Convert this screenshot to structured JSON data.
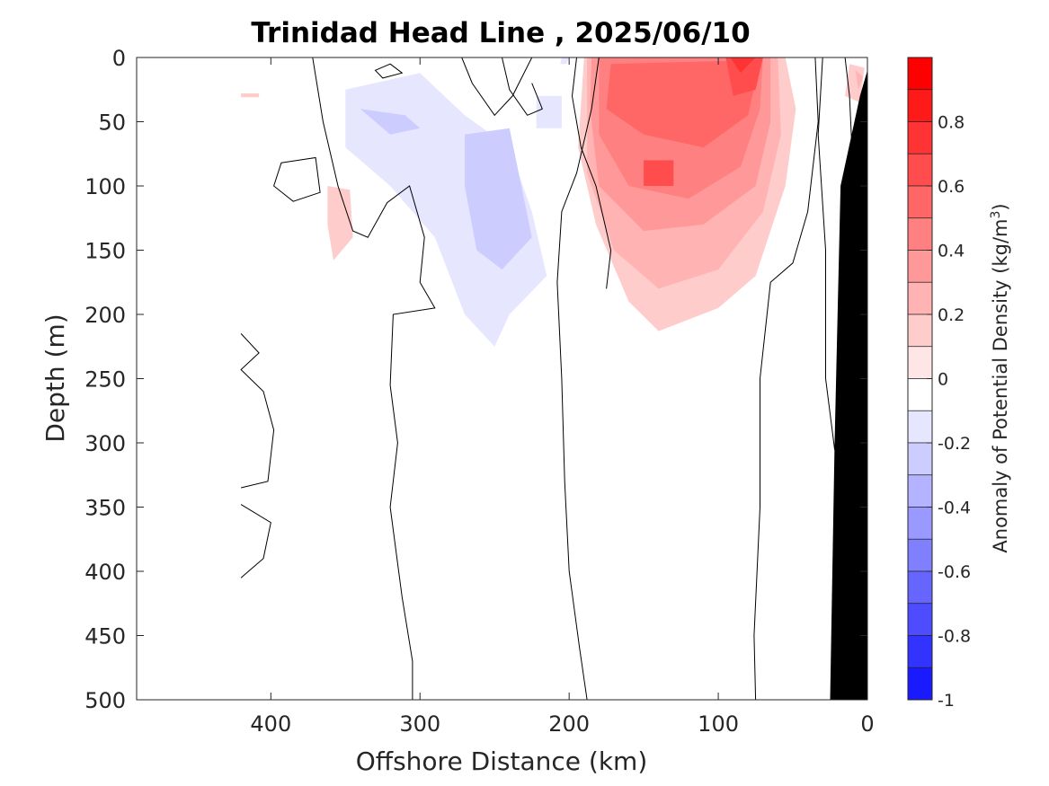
{
  "chart_data": {
    "type": "contour",
    "title": "Trinidad Head Line , 2025/06/10",
    "xlabel": "Offshore Distance (km)",
    "ylabel": "Depth (m)",
    "xlim": [
      490,
      0
    ],
    "ylim": [
      0,
      500
    ],
    "x_reversed": true,
    "y_reversed": true,
    "x_ticks": [
      400,
      300,
      200,
      100,
      0
    ],
    "y_ticks": [
      0,
      50,
      100,
      150,
      200,
      250,
      300,
      350,
      400,
      450,
      500
    ],
    "grid": false,
    "colorbar": {
      "label": "Anomaly of Potential Density (kg/m³)",
      "label_main": "Anomaly of Potential Density (kg/m",
      "label_sup": "3",
      "label_end": ")",
      "limits": [
        -1,
        1
      ],
      "tick_values": [
        0.8,
        0.6,
        0.4,
        0.2,
        0,
        -0.2,
        -0.4,
        -0.6,
        -0.8,
        -1
      ],
      "tick_labels": [
        "0.8",
        "0.6",
        "0.4",
        "0.2",
        "0",
        "-0.2",
        "-0.4",
        "-0.6",
        "-0.8",
        "-1"
      ],
      "levels": [
        1.0,
        0.9,
        0.8,
        0.7,
        0.6,
        0.5,
        0.4,
        0.3,
        0.2,
        0.1,
        0.0,
        -0.1,
        -0.2,
        -0.3,
        -0.4,
        -0.5,
        -0.6,
        -0.7,
        -0.8,
        -0.9,
        -1.0
      ],
      "colors": [
        "#ff0000",
        "#ff1a1a",
        "#ff3333",
        "#ff4d4d",
        "#ff6666",
        "#ff8080",
        "#ff9999",
        "#ffb3b3",
        "#ffcccc",
        "#ffe6e6",
        "#ffffff",
        "#e6e6ff",
        "#ccccff",
        "#b3b3ff",
        "#9999ff",
        "#8080ff",
        "#6666ff",
        "#4d4dff",
        "#3333ff",
        "#1a1aff"
      ]
    },
    "filled_regions": [
      {
        "value": 0.15,
        "points": [
          [
            190,
            0
          ],
          [
            55,
            0
          ],
          [
            48,
            40
          ],
          [
            55,
            100
          ],
          [
            75,
            170
          ],
          [
            100,
            195
          ],
          [
            140,
            213
          ],
          [
            160,
            190
          ],
          [
            182,
            130
          ],
          [
            194,
            70
          ]
        ]
      },
      {
        "value": 0.25,
        "points": [
          [
            188,
            0
          ],
          [
            60,
            0
          ],
          [
            58,
            60
          ],
          [
            70,
            120
          ],
          [
            100,
            165
          ],
          [
            140,
            180
          ],
          [
            170,
            150
          ],
          [
            188,
            90
          ]
        ]
      },
      {
        "value": 0.35,
        "points": [
          [
            185,
            0
          ],
          [
            65,
            0
          ],
          [
            65,
            50
          ],
          [
            75,
            100
          ],
          [
            110,
            130
          ],
          [
            150,
            135
          ],
          [
            180,
            100
          ],
          [
            186,
            40
          ]
        ]
      },
      {
        "value": 0.45,
        "points": [
          [
            180,
            0
          ],
          [
            70,
            0
          ],
          [
            72,
            40
          ],
          [
            85,
            85
          ],
          [
            120,
            110
          ],
          [
            160,
            100
          ],
          [
            180,
            60
          ]
        ]
      },
      {
        "value": 0.55,
        "points": [
          [
            172,
            5
          ],
          [
            72,
            2
          ],
          [
            80,
            45
          ],
          [
            110,
            70
          ],
          [
            150,
            60
          ],
          [
            175,
            40
          ]
        ]
      },
      {
        "value": 0.65,
        "points": [
          [
            70,
            0
          ],
          [
            95,
            0
          ],
          [
            90,
            30
          ],
          [
            75,
            25
          ]
        ]
      },
      {
        "value": 0.65,
        "points": [
          [
            130,
            80
          ],
          [
            150,
            80
          ],
          [
            150,
            100
          ],
          [
            130,
            100
          ]
        ]
      },
      {
        "value": 0.75,
        "points": [
          [
            75,
            0
          ],
          [
            92,
            0
          ],
          [
            85,
            12
          ]
        ]
      },
      {
        "value": 0.15,
        "points": [
          [
            12,
            5
          ],
          [
            2,
            8
          ],
          [
            5,
            35
          ],
          [
            15,
            30
          ]
        ]
      },
      {
        "value": 0.25,
        "points": [
          [
            8,
            10
          ],
          [
            3,
            15
          ],
          [
            6,
            25
          ]
        ]
      },
      {
        "value": 0.15,
        "points": [
          [
            362,
            100
          ],
          [
            347,
            103
          ],
          [
            345,
            140
          ],
          [
            358,
            158
          ],
          [
            362,
            130
          ]
        ]
      },
      {
        "value": 0.15,
        "points": [
          [
            420,
            28
          ],
          [
            408,
            28
          ],
          [
            408,
            31
          ],
          [
            420,
            31
          ]
        ]
      },
      {
        "value": -0.15,
        "points": [
          [
            350,
            25
          ],
          [
            300,
            12
          ],
          [
            270,
            45
          ],
          [
            240,
            70
          ],
          [
            225,
            120
          ],
          [
            215,
            170
          ],
          [
            240,
            200
          ],
          [
            250,
            225
          ],
          [
            270,
            200
          ],
          [
            290,
            140
          ],
          [
            320,
            100
          ],
          [
            350,
            70
          ]
        ]
      },
      {
        "value": -0.25,
        "points": [
          [
            340,
            40
          ],
          [
            310,
            45
          ],
          [
            300,
            55
          ],
          [
            320,
            60
          ]
        ]
      },
      {
        "value": -0.25,
        "points": [
          [
            270,
            60
          ],
          [
            240,
            55
          ],
          [
            225,
            140
          ],
          [
            245,
            165
          ],
          [
            262,
            150
          ],
          [
            270,
            100
          ]
        ]
      },
      {
        "value": -0.15,
        "points": [
          [
            205,
            30
          ],
          [
            205,
            55
          ],
          [
            222,
            55
          ],
          [
            222,
            30
          ]
        ]
      },
      {
        "value": -0.15,
        "points": [
          [
            200,
            0
          ],
          [
            202,
            5
          ],
          [
            206,
            5
          ],
          [
            205,
            0
          ]
        ]
      }
    ],
    "zero_contours": [
      {
        "closed": false,
        "points": [
          [
            372,
            0
          ],
          [
            365,
            50
          ],
          [
            355,
            100
          ],
          [
            345,
            135
          ],
          [
            335,
            140
          ],
          [
            322,
            113
          ],
          [
            307,
            100
          ],
          [
            297,
            140
          ],
          [
            300,
            175
          ],
          [
            290,
            195
          ],
          [
            318,
            200
          ],
          [
            320,
            255
          ],
          [
            315,
            300
          ],
          [
            320,
            350
          ],
          [
            312,
            420
          ],
          [
            305,
            470
          ],
          [
            305,
            500
          ]
        ]
      },
      {
        "closed": false,
        "points": [
          [
            180,
            0
          ],
          [
            185,
            40
          ],
          [
            195,
            90
          ],
          [
            205,
            120
          ],
          [
            208,
            175
          ],
          [
            205,
            250
          ],
          [
            203,
            330
          ],
          [
            200,
            400
          ],
          [
            193,
            460
          ],
          [
            188,
            500
          ]
        ]
      },
      {
        "closed": false,
        "points": [
          [
            35,
            0
          ],
          [
            33,
            50
          ],
          [
            40,
            120
          ],
          [
            50,
            160
          ],
          [
            65,
            175
          ],
          [
            72,
            250
          ],
          [
            72,
            350
          ],
          [
            76,
            450
          ],
          [
            75,
            500
          ]
        ]
      },
      {
        "closed": false,
        "points": [
          [
            195,
            0
          ],
          [
            198,
            30
          ],
          [
            192,
            70
          ],
          [
            182,
            100
          ],
          [
            172,
            150
          ],
          [
            175,
            180
          ]
        ]
      },
      {
        "closed": false,
        "points": [
          [
            225,
            0
          ],
          [
            238,
            30
          ],
          [
            250,
            45
          ],
          [
            265,
            20
          ],
          [
            272,
            0
          ]
        ]
      },
      {
        "closed": false,
        "points": [
          [
            245,
            0
          ],
          [
            240,
            25
          ],
          [
            228,
            45
          ],
          [
            218,
            40
          ],
          [
            225,
            20
          ]
        ]
      },
      {
        "closed": true,
        "points": [
          [
            393,
            82
          ],
          [
            370,
            78
          ],
          [
            367,
            105
          ],
          [
            385,
            112
          ],
          [
            398,
            100
          ]
        ]
      },
      {
        "closed": true,
        "points": [
          [
            320,
            5
          ],
          [
            312,
            12
          ],
          [
            325,
            16
          ],
          [
            330,
            10
          ]
        ]
      },
      {
        "closed": false,
        "points": [
          [
            30,
            0
          ],
          [
            33,
            60
          ],
          [
            28,
            150
          ],
          [
            28,
            250
          ],
          [
            22,
            305
          ],
          [
            20,
            310
          ]
        ]
      },
      {
        "closed": false,
        "points": [
          [
            15,
            0
          ],
          [
            12,
            30
          ],
          [
            10,
            80
          ]
        ]
      },
      {
        "closed": false,
        "points": [
          [
            420,
            215
          ],
          [
            408,
            230
          ],
          [
            420,
            243
          ],
          [
            405,
            260
          ],
          [
            398,
            290
          ],
          [
            402,
            330
          ],
          [
            420,
            335
          ]
        ]
      },
      {
        "closed": false,
        "points": [
          [
            420,
            348
          ],
          [
            400,
            362
          ],
          [
            405,
            390
          ],
          [
            420,
            405
          ]
        ]
      }
    ],
    "bathymetry": {
      "color": "#000000",
      "points": [
        [
          0,
          10
        ],
        [
          0,
          500
        ],
        [
          25,
          500
        ],
        [
          22,
          300
        ],
        [
          18,
          100
        ],
        [
          5,
          30
        ]
      ]
    }
  }
}
